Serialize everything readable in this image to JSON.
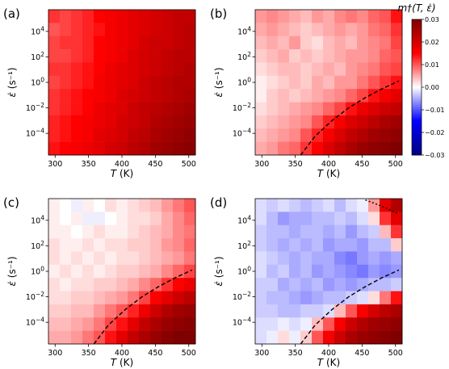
{
  "colors": {
    "colormap": [
      "#00007f",
      "#0000ff",
      "#ffffff",
      "#ff0000",
      "#7f0000"
    ],
    "boundary_line": "#000000",
    "cell_edge": "#ffffff"
  },
  "chart_data": [
    {
      "type": "heatmap",
      "panel_label": "(a)",
      "xlabel": "T (K)",
      "ylabel": "ε̇ (s⁻¹)",
      "x_ticks": [
        300,
        350,
        400,
        450,
        500
      ],
      "y_ticks": [
        "10^4",
        "10^2",
        "10^0",
        "10^-2",
        "10^-4"
      ],
      "x_range": [
        290,
        510
      ],
      "y_log10_range": [
        -5.7,
        5.7
      ],
      "x_centers": [
        300,
        317,
        334,
        351,
        368,
        385,
        402,
        419,
        436,
        453,
        470,
        487,
        504
      ],
      "y_log10_centers": [
        5,
        4,
        3,
        2,
        1,
        0,
        -1,
        -2,
        -3,
        -4,
        -5
      ],
      "values": [
        [
          0.012,
          0.011,
          0.012,
          0.013,
          0.015,
          0.016,
          0.017,
          0.018,
          0.019,
          0.02,
          0.021,
          0.022,
          0.022
        ],
        [
          0.01,
          0.011,
          0.012,
          0.013,
          0.014,
          0.016,
          0.017,
          0.018,
          0.019,
          0.02,
          0.021,
          0.022,
          0.023
        ],
        [
          0.011,
          0.012,
          0.012,
          0.013,
          0.015,
          0.016,
          0.017,
          0.018,
          0.02,
          0.021,
          0.021,
          0.022,
          0.023
        ],
        [
          0.011,
          0.011,
          0.012,
          0.013,
          0.015,
          0.016,
          0.017,
          0.019,
          0.02,
          0.021,
          0.022,
          0.023,
          0.023
        ],
        [
          0.012,
          0.012,
          0.013,
          0.014,
          0.015,
          0.017,
          0.018,
          0.019,
          0.02,
          0.021,
          0.022,
          0.023,
          0.024
        ],
        [
          0.011,
          0.012,
          0.013,
          0.014,
          0.016,
          0.017,
          0.018,
          0.019,
          0.021,
          0.022,
          0.023,
          0.024,
          0.024
        ],
        [
          0.012,
          0.013,
          0.014,
          0.015,
          0.016,
          0.017,
          0.019,
          0.02,
          0.021,
          0.022,
          0.023,
          0.024,
          0.025
        ],
        [
          0.012,
          0.013,
          0.014,
          0.015,
          0.017,
          0.018,
          0.019,
          0.021,
          0.022,
          0.023,
          0.024,
          0.025,
          0.026
        ],
        [
          0.013,
          0.014,
          0.015,
          0.016,
          0.017,
          0.018,
          0.02,
          0.021,
          0.022,
          0.024,
          0.025,
          0.026,
          0.027
        ],
        [
          0.013,
          0.014,
          0.015,
          0.016,
          0.018,
          0.019,
          0.02,
          0.022,
          0.023,
          0.025,
          0.026,
          0.027,
          0.028
        ],
        [
          0.014,
          0.015,
          0.016,
          0.017,
          0.018,
          0.02,
          0.021,
          0.023,
          0.024,
          0.026,
          0.027,
          0.028,
          0.029
        ]
      ]
    },
    {
      "type": "heatmap",
      "panel_label": "(b)",
      "xlabel": "T (K)",
      "ylabel": "ε̇ (s⁻¹)",
      "x_ticks": [
        300,
        350,
        400,
        450,
        500
      ],
      "y_ticks": [
        "10^4",
        "10^2",
        "10^0",
        "10^-2",
        "10^-4"
      ],
      "x_range": [
        290,
        510
      ],
      "y_log10_range": [
        -5.7,
        5.7
      ],
      "x_centers": [
        300,
        317,
        334,
        351,
        368,
        385,
        402,
        419,
        436,
        453,
        470,
        487,
        504
      ],
      "y_log10_centers": [
        5,
        4,
        3,
        2,
        1,
        0,
        -1,
        -2,
        -3,
        -4,
        -5
      ],
      "boundary": {
        "style": "dashed",
        "x": [
          358,
          380,
          405,
          430,
          455,
          480,
          505
        ],
        "y_log10": [
          -5.7,
          -4.2,
          -3.0,
          -2.0,
          -1.2,
          -0.5,
          0.1
        ]
      },
      "values": [
        [
          0.006,
          0.007,
          0.006,
          0.005,
          0.004,
          0.006,
          0.005,
          0.007,
          0.008,
          0.007,
          0.009,
          0.01,
          0.014
        ],
        [
          0.005,
          0.006,
          0.005,
          0.004,
          0.003,
          0.004,
          0.005,
          0.006,
          0.005,
          0.006,
          0.008,
          0.009,
          0.012
        ],
        [
          0.004,
          0.005,
          0.004,
          0.006,
          0.003,
          0.002,
          0.004,
          0.005,
          0.004,
          0.006,
          0.007,
          0.008,
          0.011
        ],
        [
          0.003,
          0.004,
          0.005,
          0.003,
          0.004,
          0.003,
          0.004,
          0.005,
          0.006,
          0.006,
          0.007,
          0.009,
          0.01
        ],
        [
          0.002,
          0.003,
          0.004,
          0.004,
          0.003,
          0.004,
          0.005,
          0.004,
          0.006,
          0.007,
          0.008,
          0.01,
          0.011
        ],
        [
          0.001,
          0.002,
          0.003,
          0.004,
          0.003,
          0.005,
          0.004,
          0.006,
          0.006,
          0.008,
          0.01,
          0.012,
          0.014
        ],
        [
          0.001,
          0.003,
          0.004,
          0.003,
          0.004,
          0.005,
          0.006,
          0.007,
          0.009,
          0.011,
          0.014,
          0.016,
          0.018
        ],
        [
          0.002,
          0.003,
          0.004,
          0.005,
          0.006,
          0.007,
          0.009,
          0.011,
          0.014,
          0.017,
          0.019,
          0.021,
          0.022
        ],
        [
          0.003,
          0.004,
          0.005,
          0.006,
          0.007,
          0.01,
          0.013,
          0.016,
          0.019,
          0.021,
          0.023,
          0.025,
          0.026
        ],
        [
          0.004,
          0.005,
          0.006,
          0.007,
          0.01,
          0.013,
          0.016,
          0.019,
          0.022,
          0.024,
          0.026,
          0.027,
          0.028
        ],
        [
          0.005,
          0.006,
          0.008,
          0.009,
          0.012,
          0.015,
          0.019,
          0.022,
          0.025,
          0.027,
          0.028,
          0.029,
          0.03
        ]
      ]
    },
    {
      "type": "heatmap",
      "panel_label": "(c)",
      "xlabel": "T (K)",
      "ylabel": "ε̇ (s⁻¹)",
      "x_ticks": [
        300,
        350,
        400,
        450,
        500
      ],
      "y_ticks": [
        "10^4",
        "10^2",
        "10^0",
        "10^-2",
        "10^-4"
      ],
      "x_range": [
        290,
        510
      ],
      "y_log10_range": [
        -5.7,
        5.7
      ],
      "x_centers": [
        300,
        317,
        334,
        351,
        368,
        385,
        402,
        419,
        436,
        453,
        470,
        487,
        504
      ],
      "y_log10_centers": [
        5,
        4,
        3,
        2,
        1,
        0,
        -1,
        -2,
        -3,
        -4,
        -5
      ],
      "boundary": {
        "style": "dashed",
        "x": [
          358,
          380,
          405,
          430,
          455,
          480,
          505
        ],
        "y_log10": [
          -5.7,
          -4.2,
          -3.0,
          -2.0,
          -1.2,
          -0.5,
          0.1
        ]
      },
      "values": [
        [
          0.001,
          0.0,
          -0.001,
          0.001,
          0.0,
          0.002,
          0.001,
          0.002,
          0.003,
          0.004,
          0.006,
          0.008,
          0.01
        ],
        [
          0.001,
          0.0,
          0.001,
          -0.001,
          -0.001,
          0.0,
          0.001,
          0.002,
          0.002,
          0.003,
          0.005,
          0.007,
          0.009
        ],
        [
          0.001,
          0.001,
          0.0,
          0.001,
          0.002,
          0.001,
          0.001,
          0.002,
          0.003,
          0.004,
          0.005,
          0.007,
          0.008
        ],
        [
          0.002,
          0.001,
          0.001,
          0.002,
          0.001,
          0.002,
          0.002,
          0.003,
          0.003,
          0.004,
          0.006,
          0.007,
          0.009
        ],
        [
          0.002,
          0.001,
          0.002,
          0.001,
          0.002,
          0.001,
          0.002,
          0.002,
          0.003,
          0.004,
          0.005,
          0.006,
          0.008
        ],
        [
          0.001,
          0.002,
          0.001,
          0.002,
          0.001,
          0.002,
          0.003,
          0.003,
          0.004,
          0.005,
          0.007,
          0.009,
          0.011
        ],
        [
          0.002,
          0.001,
          0.002,
          0.002,
          0.003,
          0.003,
          0.004,
          0.005,
          0.007,
          0.009,
          0.012,
          0.015,
          0.017
        ],
        [
          0.002,
          0.002,
          0.003,
          0.003,
          0.004,
          0.005,
          0.006,
          0.008,
          0.011,
          0.015,
          0.018,
          0.021,
          0.023
        ],
        [
          0.003,
          0.003,
          0.004,
          0.004,
          0.006,
          0.008,
          0.01,
          0.013,
          0.017,
          0.021,
          0.024,
          0.026,
          0.027
        ],
        [
          0.004,
          0.004,
          0.005,
          0.006,
          0.008,
          0.011,
          0.014,
          0.018,
          0.022,
          0.025,
          0.027,
          0.028,
          0.029
        ],
        [
          0.005,
          0.005,
          0.006,
          0.008,
          0.01,
          0.014,
          0.018,
          0.022,
          0.025,
          0.027,
          0.029,
          0.03,
          0.03
        ]
      ]
    },
    {
      "type": "heatmap",
      "panel_label": "(d)",
      "xlabel": "T (K)",
      "ylabel": "ε̇ (s⁻¹)",
      "x_ticks": [
        300,
        350,
        400,
        450,
        500
      ],
      "y_ticks": [
        "10^4",
        "10^2",
        "10^0",
        "10^-2",
        "10^-4"
      ],
      "x_range": [
        290,
        510
      ],
      "y_log10_range": [
        -5.7,
        5.7
      ],
      "x_centers": [
        300,
        317,
        334,
        351,
        368,
        385,
        402,
        419,
        436,
        453,
        470,
        487,
        504
      ],
      "y_log10_centers": [
        5,
        4,
        3,
        2,
        1,
        0,
        -1,
        -2,
        -3,
        -4,
        -5
      ],
      "boundary": {
        "style": "dashed",
        "x": [
          358,
          380,
          405,
          430,
          455,
          480,
          505
        ],
        "y_log10": [
          -5.7,
          -4.2,
          -3.0,
          -2.0,
          -1.2,
          -0.5,
          0.1
        ]
      },
      "boundary_upper": {
        "style": "dotted",
        "x": [
          455,
          480,
          505
        ],
        "y_log10": [
          5.6,
          5.1,
          4.5
        ]
      },
      "values": [
        [
          -0.002,
          -0.003,
          -0.002,
          -0.003,
          -0.004,
          -0.003,
          -0.002,
          -0.004,
          -0.002,
          -0.001,
          0.006,
          0.018,
          0.024
        ],
        [
          -0.002,
          -0.004,
          -0.006,
          -0.005,
          -0.005,
          -0.004,
          -0.004,
          -0.003,
          -0.004,
          -0.002,
          0.002,
          0.012,
          0.018
        ],
        [
          -0.003,
          -0.004,
          -0.004,
          -0.005,
          -0.004,
          -0.004,
          -0.005,
          -0.004,
          -0.006,
          -0.004,
          -0.003,
          0.004,
          0.012
        ],
        [
          -0.003,
          -0.004,
          -0.005,
          -0.004,
          -0.005,
          -0.004,
          -0.006,
          -0.005,
          -0.005,
          -0.006,
          -0.004,
          -0.004,
          0.003
        ],
        [
          -0.002,
          -0.003,
          -0.004,
          -0.005,
          -0.004,
          -0.005,
          -0.005,
          -0.007,
          -0.008,
          -0.006,
          -0.005,
          -0.006,
          -0.005
        ],
        [
          -0.002,
          -0.004,
          -0.003,
          -0.005,
          -0.004,
          -0.006,
          -0.005,
          -0.006,
          -0.007,
          -0.008,
          -0.006,
          -0.007,
          -0.006
        ],
        [
          -0.003,
          -0.003,
          -0.005,
          -0.004,
          -0.005,
          -0.004,
          -0.006,
          -0.005,
          -0.006,
          -0.005,
          -0.004,
          -0.004,
          -0.003
        ],
        [
          -0.003,
          -0.004,
          -0.004,
          -0.005,
          -0.006,
          -0.005,
          -0.004,
          -0.004,
          -0.003,
          -0.002,
          0.002,
          0.008,
          0.014
        ],
        [
          -0.003,
          -0.003,
          -0.004,
          -0.004,
          -0.003,
          -0.003,
          -0.002,
          0.004,
          0.01,
          0.016,
          0.02,
          0.023,
          0.025
        ],
        [
          -0.002,
          -0.002,
          -0.001,
          -0.002,
          -0.001,
          0.004,
          0.01,
          0.016,
          0.021,
          0.024,
          0.026,
          0.027,
          0.028
        ],
        [
          -0.002,
          -0.001,
          0.002,
          -0.001,
          0.003,
          0.01,
          0.016,
          0.021,
          0.025,
          0.027,
          0.028,
          0.029,
          0.03
        ]
      ]
    }
  ],
  "colorbar": {
    "label": "m†(T, ε̇)",
    "ticks": [
      "0.03",
      "0.02",
      "0.01",
      "0.00",
      "-0.01",
      "-0.02",
      "-0.03"
    ],
    "range": [
      -0.03,
      0.03
    ]
  }
}
